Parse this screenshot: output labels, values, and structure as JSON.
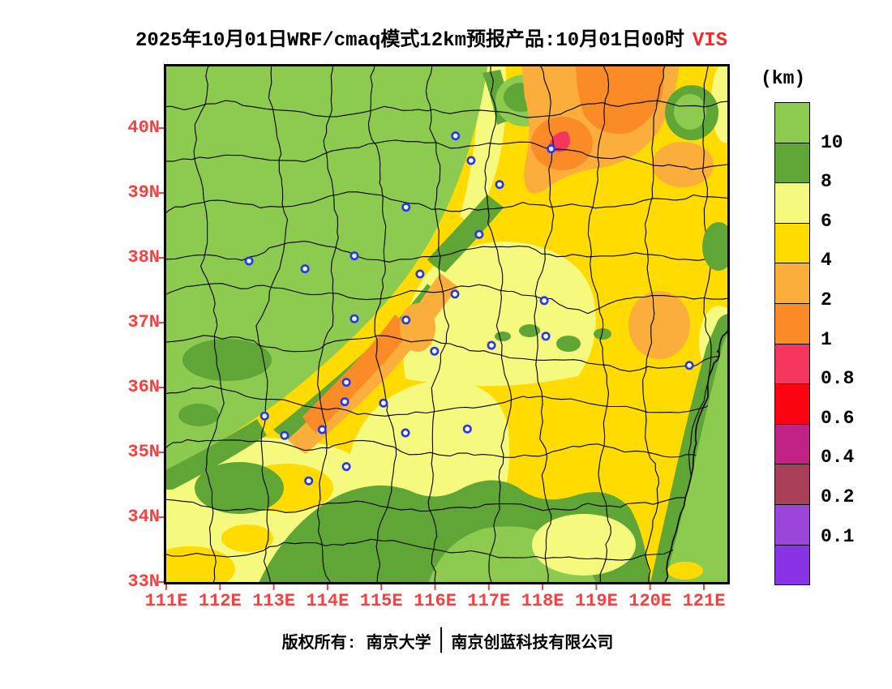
{
  "title": {
    "main": "2025年10月01日WRF/cmaq模式12km预报产品:10月01日00时",
    "highlight": "VIS"
  },
  "legend": {
    "unit": "(km)",
    "labels": [
      "10",
      "8",
      "6",
      "4",
      "2",
      "1",
      "0.8",
      "0.6",
      "0.4",
      "0.2",
      "0.1"
    ],
    "box_colors_top_to_bottom": [
      "#8CCB50",
      "#5FA636",
      "#F5F97E",
      "#FFDB00",
      "#FBAE3C",
      "#FA8B26",
      "#F5365F",
      "#F90410",
      "#C12286",
      "#A93F58",
      "#9C45DA",
      "#8933E6"
    ]
  },
  "axes": {
    "lat": [
      "40N",
      "39N",
      "38N",
      "37N",
      "36N",
      "35N",
      "34N",
      "33N"
    ],
    "lon": [
      "111E",
      "112E",
      "113E",
      "114E",
      "115E",
      "116E",
      "117E",
      "118E",
      "119E",
      "120E",
      "121E"
    ]
  },
  "footer": {
    "left": "版权所有: 南京大学",
    "divider": "│",
    "right": "南京创蓝科技有限公司"
  },
  "palette": {
    "gold": "#FFDB00",
    "pale": "#F5F97E",
    "lightGreen": "#8CCB50",
    "darkGreen": "#5FA636",
    "lightOrange": "#FBAE3C",
    "orange": "#FA8B26",
    "crimson": "#F5365F",
    "red": "#F90410",
    "magenta": "#C12286",
    "maroon": "#A93F58",
    "purple1": "#9C45DA",
    "purple2": "#8933E6",
    "axis_red": "#F84040",
    "vis_red": "#F82828",
    "marker_blue": "#2438E8",
    "boundary_black": "#000000"
  },
  "chart_data": {
    "type": "filled_contour_map",
    "title": "2025年10月01日WRF/cmaq模式12km预报产品:10月01日00时 VIS",
    "variable": "VIS",
    "unit": "km",
    "lon_range": [
      111,
      121.4
    ],
    "lat_range": [
      33,
      40.95
    ],
    "lon_ticks": [
      111,
      112,
      113,
      114,
      115,
      116,
      117,
      118,
      119,
      120,
      121
    ],
    "lat_ticks": [
      33,
      34,
      35,
      36,
      37,
      38,
      39,
      40
    ],
    "contour_levels": [
      0.1,
      0.2,
      0.4,
      0.6,
      0.8,
      1,
      2,
      4,
      6,
      8,
      10
    ],
    "legend_position": "right",
    "summary": "High visibility (>10km, green) over NW plateau; 4-8km (yellow) over central/eastern plain; 1-4km (orange) band NE corner near 117-120E 39-41N with <1km (crimson) spot near 118.4E 39.8N; orange band along 114-115.7E 35.4-37N; green (>8km) along SE mountains and coastal sea",
    "stations_lonlat": [
      [
        116.38,
        39.88
      ],
      [
        116.67,
        39.5
      ],
      [
        117.2,
        39.13
      ],
      [
        115.46,
        38.78
      ],
      [
        118.16,
        39.68
      ],
      [
        116.82,
        38.36
      ],
      [
        114.5,
        38.03
      ],
      [
        112.54,
        37.95
      ],
      [
        113.58,
        37.83
      ],
      [
        115.72,
        37.75
      ],
      [
        114.5,
        37.06
      ],
      [
        115.46,
        37.04
      ],
      [
        115.99,
        36.56
      ],
      [
        114.35,
        36.08
      ],
      [
        115.04,
        35.76
      ],
      [
        112.83,
        35.56
      ],
      [
        113.2,
        35.26
      ],
      [
        113.9,
        35.35
      ],
      [
        114.35,
        34.78
      ],
      [
        113.65,
        34.56
      ],
      [
        117.05,
        36.65
      ],
      [
        118.03,
        37.34
      ],
      [
        116.37,
        37.44
      ],
      [
        118.06,
        36.79
      ],
      [
        116.6,
        35.36
      ],
      [
        120.73,
        36.34
      ],
      [
        114.32,
        35.78
      ],
      [
        115.45,
        35.3
      ]
    ]
  }
}
